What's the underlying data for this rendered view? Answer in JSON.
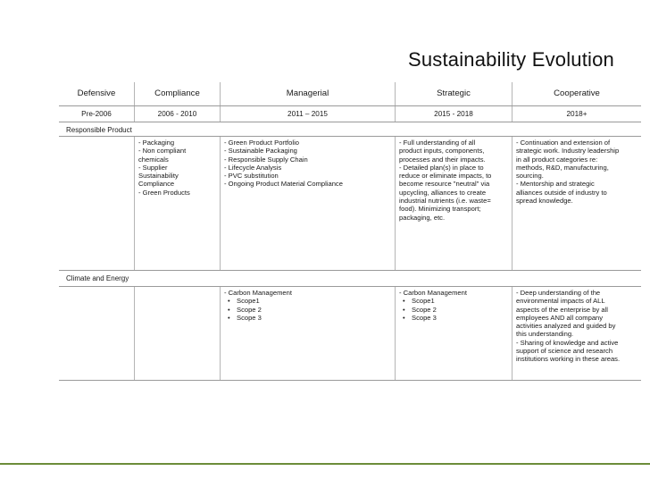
{
  "slide": {
    "title": "Sustainability Evolution"
  },
  "table": {
    "headers": [
      "Defensive",
      "Compliance",
      "Managerial",
      "Strategic",
      "Cooperative"
    ],
    "years": [
      "Pre-2006",
      "2006 - 2010",
      "2011 – 2015",
      "2015 - 2018",
      "2018+"
    ],
    "sections": [
      {
        "label": "Responsible Product",
        "compliance": [
          "- Packaging",
          "- Non compliant",
          "chemicals",
          "- Supplier",
          "Sustainability",
          "Compliance",
          "- Green Products"
        ],
        "managerial": [
          "- Green Product Portfolio",
          "- Sustainable Packaging",
          "- Responsible Supply Chain",
          "- Lifecycle Analysis",
          "- PVC substitution",
          "- Ongoing Product Material Compliance"
        ],
        "strategic": [
          "- Full understanding of all",
          "product inputs, components,",
          "processes and their impacts.",
          "- Detailed plan(s) in place to",
          "reduce or eliminate impacts, to",
          "become resource \"neutral\" via",
          "upcycling, alliances to create",
          "industrial nutrients (i.e. waste=",
          "food).  Minimizing transport;",
          "packaging, etc."
        ],
        "cooperative": [
          "- Continuation and extension of",
          "strategic work. Industry leadership",
          "in all product categories re:",
          "methods, R&D, manufacturing,",
          "sourcing.",
          "- Mentorship and strategic",
          "alliances outside of industry to",
          "spread knowledge."
        ]
      },
      {
        "label": "Climate and Energy",
        "managerial_title": "- Carbon Management",
        "managerial_bullets": [
          "Scope1",
          "Scope 2",
          "Scope 3"
        ],
        "strategic_title": "- Carbon Management",
        "strategic_bullets": [
          "Scope1",
          "Scope 2",
          "Scope 3"
        ],
        "cooperative": [
          "- Deep understanding of the",
          "environmental impacts of ALL",
          "aspects of the enterprise by all",
          "employees AND all company",
          "activities analyzed and guided by",
          "this understanding.",
          "- Sharing of knowledge and active",
          "support of science and research",
          "institutions working in these areas."
        ]
      }
    ],
    "bullet_glyph": "•"
  }
}
